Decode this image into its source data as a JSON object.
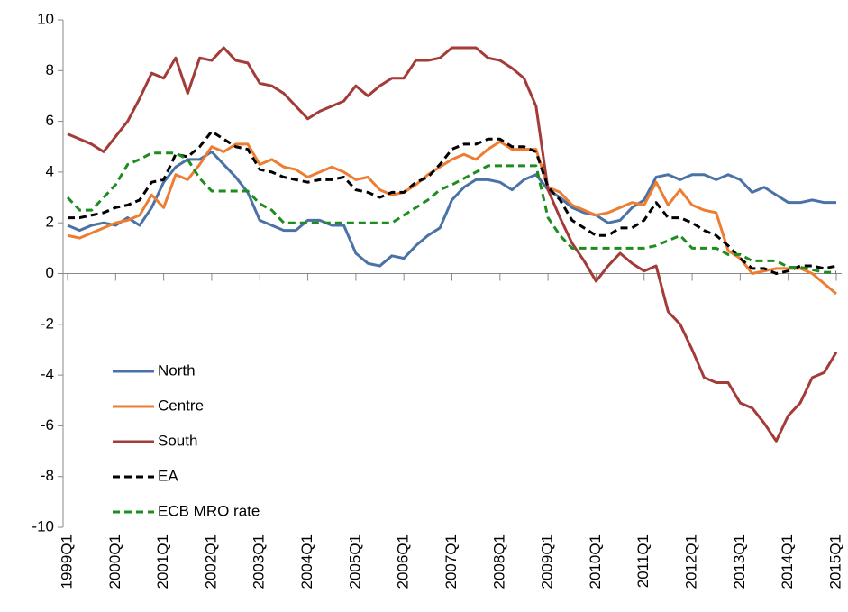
{
  "chart_data": {
    "type": "line",
    "categories": [
      "1999Q1",
      null,
      null,
      null,
      "2000Q1",
      null,
      null,
      null,
      "2001Q1",
      null,
      null,
      null,
      "2002Q1",
      null,
      null,
      null,
      "2003Q1",
      null,
      null,
      null,
      "2004Q1",
      null,
      null,
      null,
      "2005Q1",
      null,
      null,
      null,
      "2006Q1",
      null,
      null,
      null,
      "2007Q1",
      null,
      null,
      null,
      "2008Q1",
      null,
      null,
      null,
      "2009Q1",
      null,
      null,
      null,
      "2010Q1",
      null,
      null,
      null,
      "2011Q1",
      null,
      null,
      null,
      "2012Q1",
      null,
      null,
      null,
      "2013Q1",
      null,
      null,
      null,
      "2014Q1",
      null,
      null,
      null,
      "2015Q1"
    ],
    "series": [
      {
        "name": "North",
        "color": "#4a72a6",
        "dash": false,
        "values": [
          1.9,
          1.7,
          1.9,
          2.0,
          1.9,
          2.2,
          1.9,
          2.6,
          3.6,
          4.2,
          4.5,
          4.5,
          4.8,
          4.3,
          3.8,
          3.2,
          2.1,
          1.9,
          1.7,
          1.7,
          2.1,
          2.1,
          1.9,
          1.9,
          0.8,
          0.4,
          0.3,
          0.7,
          0.6,
          1.1,
          1.5,
          1.8,
          2.9,
          3.4,
          3.7,
          3.7,
          3.6,
          3.3,
          3.7,
          3.9,
          3.3,
          3.0,
          2.6,
          2.4,
          2.3,
          2.0,
          2.1,
          2.6,
          2.9,
          3.8,
          3.9,
          3.7,
          3.9,
          3.9,
          3.7,
          3.9,
          3.7,
          3.2,
          3.4,
          3.1,
          2.8,
          2.8,
          2.9,
          2.8,
          2.8
        ]
      },
      {
        "name": "Centre",
        "color": "#ed7d31",
        "dash": false,
        "values": [
          1.5,
          1.4,
          1.6,
          1.8,
          2.0,
          2.1,
          2.3,
          3.1,
          2.6,
          3.9,
          3.7,
          4.3,
          5.0,
          4.8,
          5.1,
          5.1,
          4.3,
          4.5,
          4.2,
          4.1,
          3.8,
          4.0,
          4.2,
          4.0,
          3.7,
          3.8,
          3.3,
          3.1,
          3.2,
          3.5,
          3.9,
          4.2,
          4.5,
          4.7,
          4.5,
          4.9,
          5.2,
          4.9,
          4.9,
          4.9,
          3.4,
          3.2,
          2.7,
          2.5,
          2.3,
          2.4,
          2.6,
          2.8,
          2.7,
          3.6,
          2.7,
          3.3,
          2.7,
          2.5,
          2.4,
          0.9,
          0.6,
          0.0,
          0.1,
          0.2,
          0.2,
          0.2,
          0.0,
          -0.4,
          -0.8
        ]
      },
      {
        "name": "South",
        "color": "#a33b38",
        "dash": false,
        "values": [
          5.5,
          5.3,
          5.1,
          4.8,
          5.4,
          6.0,
          6.9,
          7.9,
          7.7,
          8.5,
          7.1,
          8.5,
          8.4,
          8.9,
          8.4,
          8.3,
          7.5,
          7.4,
          7.1,
          6.6,
          6.1,
          6.4,
          6.6,
          6.8,
          7.4,
          7.0,
          7.4,
          7.7,
          7.7,
          8.4,
          8.4,
          8.5,
          8.9,
          8.9,
          8.9,
          8.5,
          8.4,
          8.1,
          7.7,
          6.6,
          3.3,
          2.2,
          1.2,
          0.5,
          -0.3,
          0.3,
          0.8,
          0.4,
          0.1,
          0.3,
          -1.5,
          -2.0,
          -3.0,
          -4.1,
          -4.3,
          -4.3,
          -5.1,
          -5.3,
          -5.9,
          -6.6,
          -5.6,
          -5.1,
          -4.1,
          -3.9,
          -3.1
        ]
      },
      {
        "name": "EA",
        "color": "#000000",
        "dash": true,
        "values": [
          2.2,
          2.2,
          2.3,
          2.4,
          2.6,
          2.7,
          2.9,
          3.6,
          3.7,
          4.7,
          4.6,
          5.0,
          5.6,
          5.3,
          5.0,
          4.9,
          4.1,
          4.0,
          3.8,
          3.7,
          3.6,
          3.7,
          3.7,
          3.8,
          3.3,
          3.2,
          3.0,
          3.2,
          3.2,
          3.6,
          3.8,
          4.3,
          4.9,
          5.1,
          5.1,
          5.3,
          5.3,
          5.0,
          5.0,
          4.8,
          3.4,
          2.9,
          2.1,
          1.8,
          1.5,
          1.5,
          1.8,
          1.8,
          2.1,
          2.8,
          2.2,
          2.2,
          2.0,
          1.7,
          1.5,
          1.1,
          0.6,
          0.2,
          0.2,
          0.0,
          0.1,
          0.3,
          0.3,
          0.2,
          0.3
        ]
      },
      {
        "name": "ECB MRO rate",
        "color": "#1e8c1e",
        "dash": true,
        "values": [
          3.0,
          2.5,
          2.5,
          3.0,
          3.5,
          4.3,
          4.5,
          4.75,
          4.75,
          4.75,
          4.5,
          3.75,
          3.25,
          3.25,
          3.25,
          3.25,
          2.75,
          2.5,
          2.0,
          2.0,
          2.0,
          2.0,
          2.0,
          2.0,
          2.0,
          2.0,
          2.0,
          2.0,
          2.3,
          2.6,
          2.9,
          3.3,
          3.5,
          3.75,
          4.0,
          4.25,
          4.25,
          4.25,
          4.25,
          4.25,
          2.2,
          1.5,
          1.0,
          1.0,
          1.0,
          1.0,
          1.0,
          1.0,
          1.0,
          1.1,
          1.3,
          1.5,
          1.0,
          1.0,
          1.0,
          0.75,
          0.75,
          0.5,
          0.5,
          0.5,
          0.25,
          0.25,
          0.15,
          0.05,
          0.05
        ]
      }
    ],
    "ylim": [
      -10,
      10
    ],
    "yticks": [
      -10,
      -8,
      -6,
      -4,
      -2,
      0,
      2,
      4,
      6,
      8,
      10
    ],
    "grid": false,
    "legend": "lower left"
  }
}
